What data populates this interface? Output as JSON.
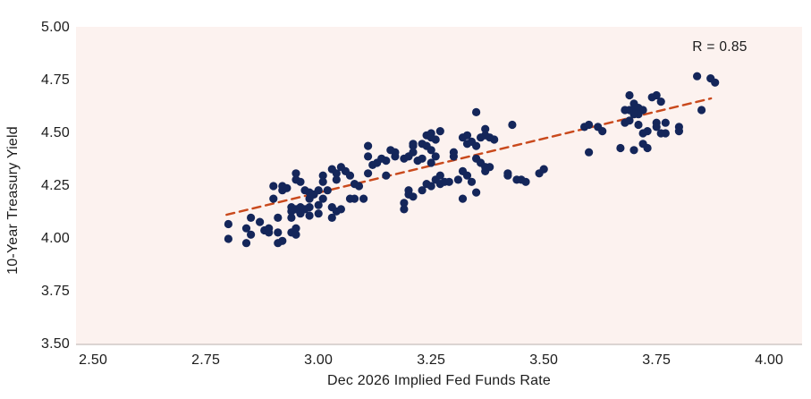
{
  "colors": {
    "plot_bg": "#FCF2EF",
    "dot": "#14265A",
    "trend": "#C9491C",
    "axis_line": "#B9B0AC",
    "text": "#1C1C1C"
  },
  "chart_data": {
    "type": "scatter",
    "title": "",
    "xlabel": "Dec 2026 Implied Fed Funds Rate",
    "ylabel": "10-Year Treasury Yield",
    "annotation": "R = 0.85",
    "grid": false,
    "legend": "none",
    "xlim": [
      2.462,
      4.073
    ],
    "ylim": [
      3.5,
      5.004
    ],
    "x_ticks": [
      2.5,
      2.75,
      3.0,
      3.25,
      3.5,
      3.75,
      4.0
    ],
    "x_tick_labels": [
      "2.50",
      "2.75",
      "3.00",
      "3.25",
      "3.50",
      "3.75",
      "4.00"
    ],
    "y_ticks": [
      3.5,
      3.75,
      4.0,
      4.25,
      4.5,
      4.75,
      5.0
    ],
    "y_tick_labels": [
      "3.50",
      "3.75",
      "4.00",
      "4.25",
      "4.50",
      "4.75",
      "5.00"
    ],
    "trend_line": {
      "x1": 2.796,
      "y1": 4.114,
      "x2": 3.871,
      "y2": 4.665,
      "style": "dashed"
    },
    "points": [
      [
        2.8,
        4.07
      ],
      [
        2.8,
        4.0
      ],
      [
        2.84,
        4.05
      ],
      [
        2.85,
        4.02
      ],
      [
        2.84,
        3.98
      ],
      [
        2.85,
        4.1
      ],
      [
        2.87,
        4.08
      ],
      [
        2.88,
        4.04
      ],
      [
        2.89,
        4.05
      ],
      [
        2.89,
        4.03
      ],
      [
        2.9,
        4.25
      ],
      [
        2.9,
        4.19
      ],
      [
        2.91,
        4.1
      ],
      [
        2.91,
        4.03
      ],
      [
        2.92,
        4.23
      ],
      [
        2.92,
        4.25
      ],
      [
        2.93,
        4.24
      ],
      [
        2.94,
        4.13
      ],
      [
        2.94,
        4.1
      ],
      [
        2.94,
        4.15
      ],
      [
        2.95,
        4.28
      ],
      [
        2.95,
        4.14
      ],
      [
        2.95,
        4.31
      ],
      [
        2.96,
        4.27
      ],
      [
        2.96,
        4.15
      ],
      [
        2.96,
        4.12
      ],
      [
        2.97,
        4.23
      ],
      [
        2.97,
        4.14
      ],
      [
        2.98,
        4.19
      ],
      [
        2.98,
        4.22
      ],
      [
        2.98,
        4.15
      ],
      [
        2.91,
        3.98
      ],
      [
        2.92,
        3.99
      ],
      [
        2.94,
        4.03
      ],
      [
        2.95,
        4.05
      ],
      [
        2.95,
        4.02
      ],
      [
        2.98,
        4.11
      ],
      [
        2.99,
        4.21
      ],
      [
        3.0,
        4.23
      ],
      [
        3.0,
        4.16
      ],
      [
        3.0,
        4.12
      ],
      [
        3.01,
        4.3
      ],
      [
        3.01,
        4.27
      ],
      [
        3.01,
        4.19
      ],
      [
        3.02,
        4.23
      ],
      [
        3.03,
        4.15
      ],
      [
        3.03,
        4.33
      ],
      [
        3.04,
        4.28
      ],
      [
        3.04,
        4.31
      ],
      [
        3.05,
        4.34
      ],
      [
        3.06,
        4.32
      ],
      [
        3.07,
        4.3
      ],
      [
        3.07,
        4.19
      ],
      [
        3.08,
        4.19
      ],
      [
        3.04,
        4.13
      ],
      [
        3.03,
        4.1
      ],
      [
        3.05,
        4.14
      ],
      [
        3.11,
        4.44
      ],
      [
        3.11,
        4.39
      ],
      [
        3.12,
        4.35
      ],
      [
        3.13,
        4.36
      ],
      [
        3.14,
        4.38
      ],
      [
        3.15,
        4.37
      ],
      [
        3.15,
        4.3
      ],
      [
        3.08,
        4.26
      ],
      [
        3.09,
        4.25
      ],
      [
        3.1,
        4.19
      ],
      [
        3.11,
        4.31
      ],
      [
        3.16,
        4.42
      ],
      [
        3.17,
        4.39
      ],
      [
        3.17,
        4.41
      ],
      [
        3.19,
        4.38
      ],
      [
        3.2,
        4.39
      ],
      [
        3.21,
        4.44
      ],
      [
        3.21,
        4.41
      ],
      [
        3.21,
        4.45
      ],
      [
        3.22,
        4.37
      ],
      [
        3.23,
        4.38
      ],
      [
        3.23,
        4.45
      ],
      [
        3.24,
        4.49
      ],
      [
        3.25,
        4.5
      ],
      [
        3.25,
        4.48
      ],
      [
        3.26,
        4.47
      ],
      [
        3.24,
        4.44
      ],
      [
        3.25,
        4.42
      ],
      [
        3.25,
        4.36
      ],
      [
        3.26,
        4.39
      ],
      [
        3.27,
        4.51
      ],
      [
        3.27,
        4.3
      ],
      [
        3.27,
        4.26
      ],
      [
        3.28,
        4.27
      ],
      [
        3.29,
        4.27
      ],
      [
        3.3,
        4.41
      ],
      [
        3.3,
        4.39
      ],
      [
        3.31,
        4.28
      ],
      [
        3.32,
        4.48
      ],
      [
        3.33,
        4.45
      ],
      [
        3.33,
        4.49
      ],
      [
        3.34,
        4.46
      ],
      [
        3.35,
        4.44
      ],
      [
        3.35,
        4.6
      ],
      [
        3.36,
        4.48
      ],
      [
        3.37,
        4.49
      ],
      [
        3.37,
        4.52
      ],
      [
        3.38,
        4.48
      ],
      [
        3.39,
        4.47
      ],
      [
        3.35,
        4.38
      ],
      [
        3.36,
        4.36
      ],
      [
        3.37,
        4.34
      ],
      [
        3.37,
        4.32
      ],
      [
        3.38,
        4.34
      ],
      [
        3.32,
        4.32
      ],
      [
        3.33,
        4.3
      ],
      [
        3.34,
        4.27
      ],
      [
        3.35,
        4.22
      ],
      [
        3.32,
        4.19
      ],
      [
        3.2,
        4.23
      ],
      [
        3.21,
        4.2
      ],
      [
        3.23,
        4.23
      ],
      [
        3.2,
        4.21
      ],
      [
        3.19,
        4.17
      ],
      [
        3.19,
        4.14
      ],
      [
        3.24,
        4.26
      ],
      [
        3.25,
        4.25
      ],
      [
        3.26,
        4.28
      ],
      [
        3.43,
        4.54
      ],
      [
        3.42,
        4.31
      ],
      [
        3.42,
        4.3
      ],
      [
        3.44,
        4.28
      ],
      [
        3.45,
        4.28
      ],
      [
        3.46,
        4.27
      ],
      [
        3.49,
        4.31
      ],
      [
        3.5,
        4.33
      ],
      [
        3.84,
        4.77
      ],
      [
        3.87,
        4.76
      ],
      [
        3.88,
        4.74
      ],
      [
        3.69,
        4.68
      ],
      [
        3.74,
        4.67
      ],
      [
        3.75,
        4.68
      ],
      [
        3.76,
        4.65
      ],
      [
        3.7,
        4.64
      ],
      [
        3.68,
        4.61
      ],
      [
        3.69,
        4.61
      ],
      [
        3.7,
        4.61
      ],
      [
        3.71,
        4.62
      ],
      [
        3.72,
        4.61
      ],
      [
        3.71,
        4.59
      ],
      [
        3.7,
        4.59
      ],
      [
        3.68,
        4.55
      ],
      [
        3.69,
        4.56
      ],
      [
        3.71,
        4.54
      ],
      [
        3.72,
        4.5
      ],
      [
        3.73,
        4.51
      ],
      [
        3.75,
        4.55
      ],
      [
        3.75,
        4.53
      ],
      [
        3.77,
        4.55
      ],
      [
        3.76,
        4.5
      ],
      [
        3.72,
        4.45
      ],
      [
        3.73,
        4.43
      ],
      [
        3.8,
        4.53
      ],
      [
        3.8,
        4.51
      ],
      [
        3.85,
        4.61
      ],
      [
        3.59,
        4.53
      ],
      [
        3.6,
        4.54
      ],
      [
        3.62,
        4.53
      ],
      [
        3.63,
        4.51
      ],
      [
        3.6,
        4.41
      ],
      [
        3.67,
        4.43
      ],
      [
        3.7,
        4.42
      ],
      [
        3.77,
        4.5
      ]
    ]
  }
}
